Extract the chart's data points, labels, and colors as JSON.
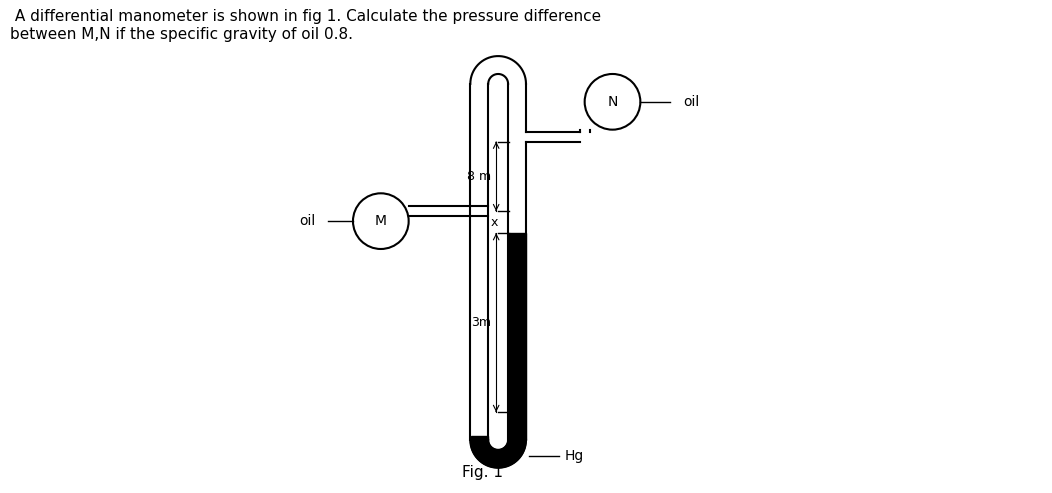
{
  "title_text": " A differential manometer is shown in fig 1. Calculate the pressure difference\nbetween M,N if the specific gravity of oil 0.8.",
  "fig_label": "Fig. 1",
  "background_color": "#ffffff",
  "line_color": "#000000",
  "label_8m": "8 m",
  "label_3m": "3m",
  "label_Hg": "Hg",
  "label_M": "M",
  "label_N": "N",
  "label_oil": "oil",
  "label_x": "x",
  "lw_tube": 1.5
}
